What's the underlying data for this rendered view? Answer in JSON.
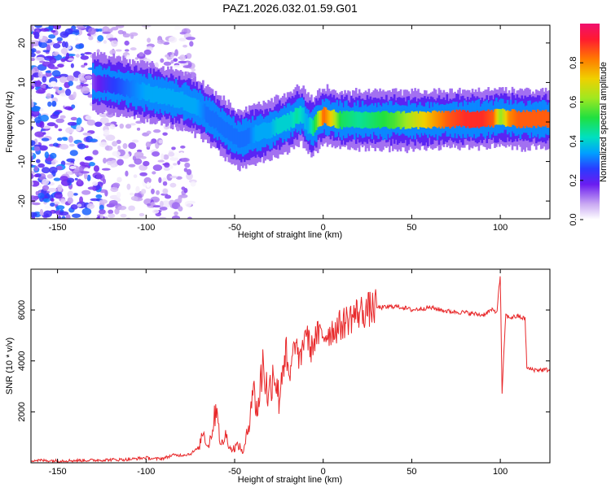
{
  "title": "PAZ1.2026.032.01.59.G01",
  "chart_data": [
    {
      "type": "heatmap",
      "name": "spectrogram",
      "xlabel": "Height of straight line (km)",
      "ylabel": "Frequency (Hz)",
      "xlim": [
        -165,
        128
      ],
      "ylim": [
        -24.5,
        24.5
      ],
      "xticks": [
        -150,
        -100,
        -50,
        0,
        50,
        100
      ],
      "yticks": [
        -20,
        -10,
        0,
        10,
        20
      ],
      "colorbar": {
        "label": "Normalized spectral amplitude",
        "range": [
          0,
          1
        ],
        "ticks": [
          "0.0",
          "0.2",
          "0.4",
          "0.6",
          "0.8"
        ]
      },
      "ridge": {
        "x": [
          -130,
          -120,
          -110,
          -100,
          -90,
          -80,
          -72,
          -66,
          -60,
          -55,
          -50,
          -46,
          -42,
          -38,
          -34,
          -30,
          -26,
          -22,
          -18,
          -15,
          -12,
          -9,
          -6,
          -3,
          0,
          5,
          10,
          20,
          30,
          40,
          50,
          60,
          70,
          80,
          90,
          96,
          100,
          105,
          110,
          115,
          120,
          128
        ],
        "y": [
          10,
          9.5,
          8.5,
          7.5,
          6.5,
          5.5,
          4,
          2,
          0,
          -2,
          -3.8,
          -4.5,
          -3.5,
          -3.0,
          -2.5,
          -2.0,
          -1.0,
          -0.5,
          0.5,
          1.5,
          2.0,
          -0.5,
          -1.5,
          0.5,
          1.5,
          1.0,
          0.5,
          0.5,
          0.5,
          0.5,
          0.5,
          0.5,
          0.7,
          0.8,
          0.8,
          0.9,
          1.3,
          0.9,
          0.8,
          0.8,
          0.8,
          0.8
        ],
        "amplitude": [
          0.15,
          0.25,
          0.3,
          0.35,
          0.35,
          0.35,
          0.35,
          0.3,
          0.3,
          0.3,
          0.3,
          0.3,
          0.3,
          0.35,
          0.35,
          0.35,
          0.4,
          0.4,
          0.4,
          0.45,
          0.4,
          0.35,
          0.45,
          0.6,
          0.85,
          0.7,
          0.5,
          0.45,
          0.5,
          0.55,
          0.65,
          0.75,
          0.85,
          0.9,
          0.9,
          0.85,
          0.6,
          0.8,
          0.85,
          0.85,
          0.85,
          0.85
        ]
      }
    },
    {
      "type": "line",
      "name": "snr",
      "xlabel": "Height of straight line (km)",
      "ylabel": "SNR (10 * v/v)",
      "xlim": [
        -165,
        128
      ],
      "ylim": [
        0,
        7600
      ],
      "xticks": [
        -150,
        -100,
        -50,
        0,
        50,
        100
      ],
      "yticks": [
        2000,
        4000,
        6000
      ],
      "color": "#e8282a",
      "x": [
        -165,
        -150,
        -130,
        -120,
        -110,
        -100,
        -95,
        -90,
        -85,
        -80,
        -75,
        -70,
        -68,
        -65,
        -62,
        -60,
        -58,
        -55,
        -52,
        -50,
        -48,
        -45,
        -42,
        -40,
        -37,
        -34,
        -31,
        -28,
        -25,
        -22,
        -19,
        -16,
        -13,
        -10,
        -7,
        -4,
        0,
        5,
        10,
        15,
        20,
        25,
        30,
        35,
        40,
        45,
        50,
        55,
        60,
        70,
        80,
        90,
        95,
        98,
        100,
        101,
        103,
        105,
        110,
        114,
        115,
        120,
        128
      ],
      "y": [
        100,
        80,
        100,
        120,
        130,
        200,
        150,
        180,
        300,
        300,
        350,
        600,
        1300,
        600,
        1500,
        2400,
        600,
        1100,
        500,
        600,
        700,
        400,
        1500,
        3000,
        2000,
        4000,
        2500,
        3800,
        2500,
        4400,
        3200,
        4800,
        3900,
        5300,
        4400,
        5000,
        5000,
        5200,
        5400,
        5700,
        5900,
        6000,
        6100,
        6100,
        6150,
        6100,
        6000,
        6050,
        6100,
        5950,
        5900,
        5800,
        6000,
        5900,
        7400,
        2700,
        5800,
        5700,
        5750,
        5650,
        3700,
        3650,
        3650
      ]
    }
  ]
}
